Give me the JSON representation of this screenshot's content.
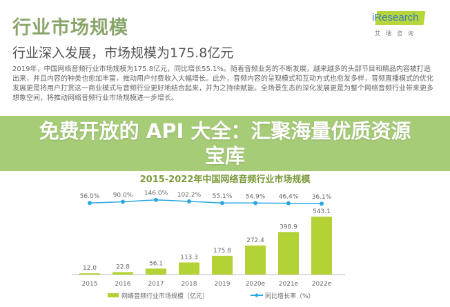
{
  "header": {
    "title": "行业市场规模",
    "subtitle": "行业深入发展，市场规模为175.8亿元"
  },
  "logo": {
    "text": "iResearch",
    "cn": "艾瑞咨询"
  },
  "paragraph": "2019年，中国网络音频行业市场规模为175.8亿元，同比增长55.1%。随着音频业务的不断发展，越来越多的头部节目和精品内容被打造出来，并且内容的种类也愈加丰富，推动用户付费收入大幅增长。此外，音频内容的呈现模式和互动方式也愈发多样，音频直播模式的优化发展更是将用户打赏这一商业模式与音频行业更好地结合起来，并为之持续赋能。全场景生态的深化发展更是为整个网络音频行业带来更多想象空间，将推动网络音频行业市场规模进一步增长。",
  "overlay": {
    "text": "免费开放的 API 大全：汇聚海量优质资源宝库",
    "color": "#a0c86e"
  },
  "chart_data": {
    "type": "bar",
    "title": "2015-2022年中国网络音频行业市场规模",
    "categories": [
      "2015",
      "2016",
      "2017",
      "2018",
      "2019",
      "2020e",
      "2021e",
      "2022e"
    ],
    "series": [
      {
        "name": "网络音频行业市场规模（亿元）",
        "type": "bar",
        "color": "#b2d235",
        "values": [
          12.0,
          22.8,
          56.1,
          113.3,
          175.8,
          272.4,
          398.9,
          543.1
        ]
      },
      {
        "name": "同比增长率（%）",
        "type": "line",
        "color": "#29a8e0",
        "values": [
          56.0,
          90.0,
          146.0,
          102.2,
          55.1,
          54.9,
          46.4,
          36.1
        ]
      }
    ]
  }
}
